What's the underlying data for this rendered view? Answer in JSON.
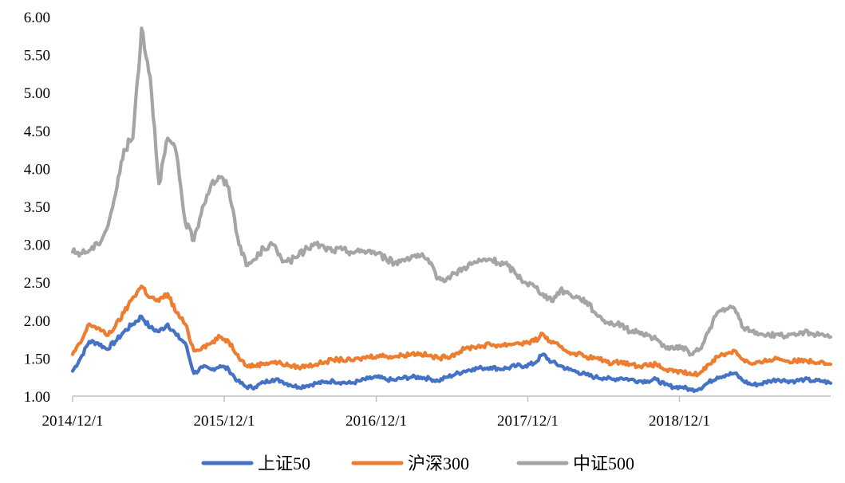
{
  "chart_data": {
    "type": "line",
    "title": "",
    "xlabel": "",
    "ylabel": "",
    "ylim": [
      1.0,
      6.0
    ],
    "y_ticks": [
      "1.00",
      "1.50",
      "2.00",
      "2.50",
      "3.00",
      "3.50",
      "4.00",
      "4.50",
      "5.00",
      "5.50",
      "6.00"
    ],
    "x_range": [
      "2014-12-01",
      "2019-11-30"
    ],
    "x_ticks": [
      {
        "date": "2014-12-01",
        "label": "2014/12/1"
      },
      {
        "date": "2015-12-01",
        "label": "2015/12/1"
      },
      {
        "date": "2016-12-01",
        "label": "2016/12/1"
      },
      {
        "date": "2017-12-01",
        "label": "2017/12/1"
      },
      {
        "date": "2018-12-01",
        "label": "2018/12/1"
      }
    ],
    "grid": false,
    "legend_position": "bottom",
    "series": [
      {
        "name": "上证50",
        "color": "#4472C4",
        "x": [
          "2014-12-01",
          "2014-12-20",
          "2015-01-10",
          "2015-01-31",
          "2015-02-21",
          "2015-03-14",
          "2015-04-04",
          "2015-04-25",
          "2015-05-16",
          "2015-06-06",
          "2015-06-27",
          "2015-07-18",
          "2015-08-08",
          "2015-08-29",
          "2015-09-19",
          "2015-10-10",
          "2015-10-31",
          "2015-11-21",
          "2015-12-12",
          "2016-01-02",
          "2016-01-23",
          "2016-02-13",
          "2016-03-05",
          "2016-03-26",
          "2016-04-16",
          "2016-05-07",
          "2016-05-28",
          "2016-06-18",
          "2016-07-09",
          "2016-07-30",
          "2016-08-20",
          "2016-09-10",
          "2016-10-01",
          "2016-10-22",
          "2016-11-12",
          "2016-12-03",
          "2016-12-24",
          "2017-01-14",
          "2017-02-04",
          "2017-02-25",
          "2017-03-18",
          "2017-04-08",
          "2017-04-29",
          "2017-05-20",
          "2017-06-10",
          "2017-07-01",
          "2017-07-22",
          "2017-08-12",
          "2017-09-02",
          "2017-09-23",
          "2017-10-14",
          "2017-11-04",
          "2017-11-25",
          "2017-12-16",
          "2018-01-06",
          "2018-01-27",
          "2018-02-17",
          "2018-03-10",
          "2018-03-31",
          "2018-04-21",
          "2018-05-12",
          "2018-06-02",
          "2018-06-23",
          "2018-07-14",
          "2018-08-04",
          "2018-08-25",
          "2018-09-15",
          "2018-10-06",
          "2018-10-27",
          "2018-11-17",
          "2018-12-08",
          "2018-12-29",
          "2019-01-19",
          "2019-02-09",
          "2019-03-02",
          "2019-03-23",
          "2019-04-13",
          "2019-05-04",
          "2019-05-25",
          "2019-06-15",
          "2019-07-06",
          "2019-07-27",
          "2019-08-17",
          "2019-09-07",
          "2019-09-28",
          "2019-10-19",
          "2019-11-09",
          "2019-11-30"
        ],
        "values": [
          1.33,
          1.5,
          1.72,
          1.7,
          1.62,
          1.72,
          1.85,
          1.95,
          2.05,
          1.9,
          1.85,
          1.95,
          1.8,
          1.7,
          1.3,
          1.38,
          1.35,
          1.4,
          1.35,
          1.2,
          1.12,
          1.12,
          1.18,
          1.22,
          1.2,
          1.15,
          1.12,
          1.14,
          1.17,
          1.18,
          1.2,
          1.18,
          1.17,
          1.2,
          1.23,
          1.25,
          1.22,
          1.21,
          1.24,
          1.25,
          1.25,
          1.23,
          1.2,
          1.25,
          1.29,
          1.33,
          1.36,
          1.37,
          1.38,
          1.36,
          1.37,
          1.4,
          1.4,
          1.43,
          1.55,
          1.45,
          1.4,
          1.35,
          1.32,
          1.28,
          1.25,
          1.24,
          1.22,
          1.24,
          1.22,
          1.2,
          1.2,
          1.22,
          1.15,
          1.12,
          1.12,
          1.08,
          1.1,
          1.18,
          1.25,
          1.28,
          1.3,
          1.2,
          1.15,
          1.16,
          1.2,
          1.22,
          1.2,
          1.2,
          1.22,
          1.2,
          1.2,
          1.17
        ]
      },
      {
        "name": "沪深300",
        "color": "#ED7D31",
        "x": [
          "2014-12-01",
          "2014-12-20",
          "2015-01-10",
          "2015-01-31",
          "2015-02-21",
          "2015-03-14",
          "2015-04-04",
          "2015-04-25",
          "2015-05-16",
          "2015-06-06",
          "2015-06-27",
          "2015-07-18",
          "2015-08-08",
          "2015-08-29",
          "2015-09-19",
          "2015-10-10",
          "2015-10-31",
          "2015-11-21",
          "2015-12-12",
          "2016-01-02",
          "2016-01-23",
          "2016-02-13",
          "2016-03-05",
          "2016-03-26",
          "2016-04-16",
          "2016-05-07",
          "2016-05-28",
          "2016-06-18",
          "2016-07-09",
          "2016-07-30",
          "2016-08-20",
          "2016-09-10",
          "2016-10-01",
          "2016-10-22",
          "2016-11-12",
          "2016-12-03",
          "2016-12-24",
          "2017-01-14",
          "2017-02-04",
          "2017-02-25",
          "2017-03-18",
          "2017-04-08",
          "2017-04-29",
          "2017-05-20",
          "2017-06-10",
          "2017-07-01",
          "2017-07-22",
          "2017-08-12",
          "2017-09-02",
          "2017-09-23",
          "2017-10-14",
          "2017-11-04",
          "2017-11-25",
          "2017-12-16",
          "2018-01-06",
          "2018-01-27",
          "2018-02-17",
          "2018-03-10",
          "2018-03-31",
          "2018-04-21",
          "2018-05-12",
          "2018-06-02",
          "2018-06-23",
          "2018-07-14",
          "2018-08-04",
          "2018-08-25",
          "2018-09-15",
          "2018-10-06",
          "2018-10-27",
          "2018-11-17",
          "2018-12-08",
          "2018-12-29",
          "2019-01-19",
          "2019-02-09",
          "2019-03-02",
          "2019-03-23",
          "2019-04-13",
          "2019-05-04",
          "2019-05-25",
          "2019-06-15",
          "2019-07-06",
          "2019-07-27",
          "2019-08-17",
          "2019-09-07",
          "2019-09-28",
          "2019-10-19",
          "2019-11-09",
          "2019-11-30"
        ],
        "values": [
          1.55,
          1.7,
          1.95,
          1.9,
          1.8,
          1.92,
          2.1,
          2.3,
          2.45,
          2.3,
          2.25,
          2.35,
          2.1,
          1.95,
          1.6,
          1.65,
          1.7,
          1.78,
          1.72,
          1.55,
          1.4,
          1.4,
          1.43,
          1.45,
          1.43,
          1.4,
          1.38,
          1.4,
          1.42,
          1.45,
          1.48,
          1.48,
          1.47,
          1.49,
          1.52,
          1.53,
          1.53,
          1.52,
          1.54,
          1.56,
          1.56,
          1.53,
          1.5,
          1.52,
          1.56,
          1.62,
          1.65,
          1.66,
          1.68,
          1.67,
          1.68,
          1.7,
          1.7,
          1.72,
          1.82,
          1.7,
          1.65,
          1.58,
          1.56,
          1.52,
          1.5,
          1.47,
          1.43,
          1.46,
          1.42,
          1.4,
          1.4,
          1.42,
          1.35,
          1.32,
          1.32,
          1.28,
          1.3,
          1.42,
          1.52,
          1.56,
          1.6,
          1.48,
          1.42,
          1.44,
          1.48,
          1.5,
          1.46,
          1.46,
          1.48,
          1.45,
          1.46,
          1.42
        ]
      },
      {
        "name": "中证500",
        "color": "#A5A5A5",
        "x": [
          "2014-12-01",
          "2014-12-20",
          "2015-01-10",
          "2015-01-31",
          "2015-02-21",
          "2015-03-14",
          "2015-04-04",
          "2015-04-25",
          "2015-05-16",
          "2015-06-06",
          "2015-06-27",
          "2015-07-18",
          "2015-08-08",
          "2015-08-29",
          "2015-09-19",
          "2015-10-10",
          "2015-10-31",
          "2015-11-21",
          "2015-12-12",
          "2016-01-02",
          "2016-01-23",
          "2016-02-13",
          "2016-03-05",
          "2016-03-26",
          "2016-04-16",
          "2016-05-07",
          "2016-05-28",
          "2016-06-18",
          "2016-07-09",
          "2016-07-30",
          "2016-08-20",
          "2016-09-10",
          "2016-10-01",
          "2016-10-22",
          "2016-11-12",
          "2016-12-03",
          "2016-12-24",
          "2017-01-14",
          "2017-02-04",
          "2017-02-25",
          "2017-03-18",
          "2017-04-08",
          "2017-04-29",
          "2017-05-20",
          "2017-06-10",
          "2017-07-01",
          "2017-07-22",
          "2017-08-12",
          "2017-09-02",
          "2017-09-23",
          "2017-10-14",
          "2017-11-04",
          "2017-11-25",
          "2017-12-16",
          "2018-01-06",
          "2018-01-27",
          "2018-02-17",
          "2018-03-10",
          "2018-03-31",
          "2018-04-21",
          "2018-05-12",
          "2018-06-02",
          "2018-06-23",
          "2018-07-14",
          "2018-08-04",
          "2018-08-25",
          "2018-09-15",
          "2018-10-06",
          "2018-10-27",
          "2018-11-17",
          "2018-12-08",
          "2018-12-29",
          "2019-01-19",
          "2019-02-09",
          "2019-03-02",
          "2019-03-23",
          "2019-04-13",
          "2019-05-04",
          "2019-05-25",
          "2019-06-15",
          "2019-07-06",
          "2019-07-27",
          "2019-08-17",
          "2019-09-07",
          "2019-09-28",
          "2019-10-19",
          "2019-11-09",
          "2019-11-30"
        ],
        "values": [
          2.9,
          2.88,
          2.92,
          3.0,
          3.2,
          3.65,
          4.25,
          4.4,
          5.85,
          5.2,
          3.8,
          4.4,
          4.2,
          3.3,
          3.05,
          3.5,
          3.8,
          3.88,
          3.75,
          3.1,
          2.72,
          2.8,
          2.95,
          3.0,
          2.82,
          2.78,
          2.85,
          2.95,
          3.0,
          2.95,
          2.92,
          2.93,
          2.9,
          2.9,
          2.92,
          2.88,
          2.82,
          2.75,
          2.8,
          2.85,
          2.85,
          2.75,
          2.55,
          2.55,
          2.62,
          2.7,
          2.75,
          2.78,
          2.8,
          2.75,
          2.72,
          2.6,
          2.5,
          2.45,
          2.35,
          2.25,
          2.4,
          2.35,
          2.3,
          2.25,
          2.1,
          2.0,
          1.95,
          1.95,
          1.85,
          1.85,
          1.8,
          1.75,
          1.65,
          1.62,
          1.65,
          1.55,
          1.62,
          1.85,
          2.1,
          2.15,
          2.15,
          1.9,
          1.85,
          1.82,
          1.8,
          1.82,
          1.78,
          1.8,
          1.85,
          1.82,
          1.82,
          1.78
        ]
      }
    ]
  }
}
